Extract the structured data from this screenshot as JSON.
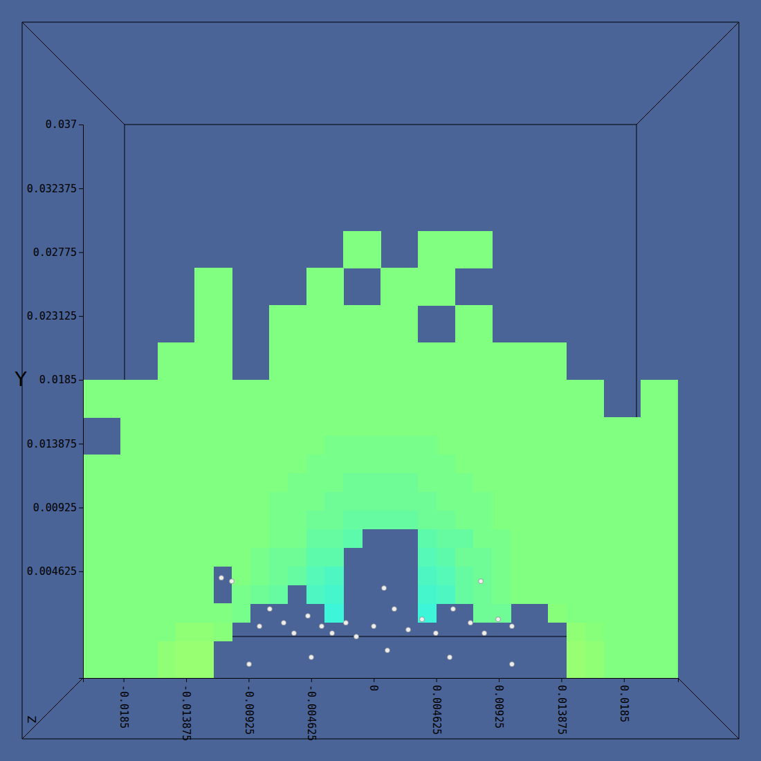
{
  "chart_data": {
    "type": "heatmap",
    "ylabel": "Y",
    "zlabel": "Z",
    "xlim": [
      -0.0215,
      0.0225
    ],
    "ylim": [
      -0.0031,
      0.037
    ],
    "xticks": [
      -0.0185,
      -0.013875,
      -0.00925,
      -0.004625,
      0,
      0.004625,
      0.00925,
      0.013875,
      0.0185
    ],
    "yticks": [
      0.004625,
      0.00925,
      0.013875,
      0.0185,
      0.023125,
      0.02775,
      0.032375,
      0.037
    ],
    "zlim": [
      0,
      1
    ],
    "grid": false,
    "x_edges": [
      -0.0215,
      -0.020125,
      -0.01875,
      -0.017375,
      -0.016,
      -0.014625,
      -0.01325,
      -0.011875,
      -0.0105,
      -0.009125,
      -0.00775,
      -0.006375,
      -0.005,
      -0.003625,
      -0.00225,
      -0.000875,
      0.0005,
      0.001875,
      0.00325,
      0.004625,
      0.006,
      0.007375,
      0.00875,
      0.010125,
      0.0115,
      0.012875,
      0.01425,
      0.015625,
      0.017,
      0.018375,
      0.01975,
      0.021125,
      0.0225
    ],
    "y_edges": [
      -0.0031,
      -0.00175,
      -0.0004,
      0.00095,
      0.0023,
      0.00365,
      0.005,
      0.00635,
      0.0077,
      0.00905,
      0.0104,
      0.01175,
      0.0131,
      0.01445,
      0.0158,
      0.01715,
      0.0185,
      0.01985,
      0.0212,
      0.02255,
      0.0239,
      0.02525,
      0.0266,
      0.02795,
      0.0293
    ],
    "cells": [
      [
        0.5,
        0.5,
        0.5,
        0.5,
        0.6,
        0.65,
        0.65,
        null,
        null,
        null,
        null,
        null,
        null,
        null,
        null,
        null,
        null,
        null,
        null,
        null,
        null,
        null,
        null,
        null,
        null,
        null,
        0.65,
        0.6,
        0.5,
        0.5,
        0.5,
        0.5
      ],
      [
        0.5,
        0.5,
        0.5,
        0.5,
        0.6,
        0.65,
        0.65,
        null,
        null,
        null,
        null,
        null,
        null,
        null,
        null,
        null,
        null,
        null,
        null,
        null,
        null,
        null,
        null,
        null,
        null,
        null,
        0.65,
        0.6,
        0.5,
        0.5,
        0.5,
        0.5
      ],
      [
        0.5,
        0.5,
        0.5,
        0.5,
        0.5,
        0.6,
        0.6,
        0.55,
        null,
        null,
        null,
        null,
        null,
        null,
        null,
        null,
        null,
        null,
        null,
        null,
        null,
        null,
        null,
        null,
        null,
        null,
        0.6,
        0.55,
        0.5,
        0.5,
        0.5,
        0.5
      ],
      [
        0.5,
        0.5,
        0.5,
        0.5,
        0.5,
        0.5,
        0.5,
        0.5,
        0.45,
        null,
        null,
        null,
        null,
        0.1,
        null,
        null,
        null,
        null,
        0.1,
        null,
        null,
        0.4,
        0.4,
        null,
        null,
        0.55,
        0.5,
        0.5,
        0.5,
        0.5,
        0.5,
        0.5
      ],
      [
        0.5,
        0.5,
        0.5,
        0.5,
        0.5,
        0.5,
        0.5,
        null,
        0.45,
        0.4,
        0.35,
        null,
        0.2,
        0.15,
        null,
        null,
        null,
        null,
        0.15,
        0.2,
        0.35,
        0.4,
        0.45,
        0.5,
        0.5,
        0.5,
        0.5,
        0.5,
        0.5,
        0.5,
        0.5,
        0.5
      ],
      [
        0.5,
        0.5,
        0.5,
        0.5,
        0.5,
        0.5,
        0.5,
        null,
        0.5,
        0.45,
        0.4,
        0.35,
        0.25,
        0.2,
        null,
        null,
        null,
        null,
        0.2,
        0.25,
        0.35,
        0.4,
        0.45,
        0.5,
        0.5,
        0.5,
        0.5,
        0.5,
        0.5,
        0.5,
        0.5,
        0.5
      ],
      [
        0.5,
        0.5,
        0.5,
        0.5,
        0.5,
        0.5,
        0.5,
        0.5,
        0.5,
        0.45,
        0.4,
        0.4,
        0.3,
        0.3,
        null,
        null,
        null,
        null,
        0.25,
        0.3,
        0.4,
        0.4,
        0.45,
        0.5,
        0.5,
        0.5,
        0.5,
        0.5,
        0.5,
        0.5,
        0.5,
        0.5
      ],
      [
        0.5,
        0.5,
        0.5,
        0.5,
        0.5,
        0.5,
        0.5,
        0.5,
        0.5,
        0.5,
        0.45,
        0.45,
        0.35,
        0.35,
        0.3,
        null,
        null,
        null,
        0.3,
        0.35,
        0.35,
        0.45,
        0.45,
        0.5,
        0.5,
        0.5,
        0.5,
        0.5,
        0.5,
        0.5,
        0.5,
        0.5
      ],
      [
        0.5,
        0.5,
        0.5,
        0.5,
        0.5,
        0.5,
        0.5,
        0.5,
        0.5,
        0.5,
        0.45,
        0.45,
        0.4,
        0.4,
        0.35,
        0.35,
        0.35,
        0.35,
        0.4,
        0.4,
        0.45,
        0.45,
        0.5,
        0.5,
        0.5,
        0.5,
        0.5,
        0.5,
        0.5,
        0.5,
        0.5,
        0.5
      ],
      [
        0.5,
        0.5,
        0.5,
        0.5,
        0.5,
        0.5,
        0.5,
        0.5,
        0.5,
        0.5,
        0.45,
        0.45,
        0.45,
        0.4,
        0.4,
        0.4,
        0.4,
        0.4,
        0.4,
        0.45,
        0.45,
        0.45,
        0.5,
        0.5,
        0.5,
        0.5,
        0.5,
        0.5,
        0.5,
        0.5,
        0.5,
        0.5
      ],
      [
        0.5,
        0.5,
        0.5,
        0.5,
        0.5,
        0.5,
        0.5,
        0.5,
        0.5,
        0.5,
        0.5,
        0.45,
        0.45,
        0.45,
        0.4,
        0.4,
        0.4,
        0.4,
        0.45,
        0.45,
        0.45,
        0.5,
        0.5,
        0.5,
        0.5,
        0.5,
        0.5,
        0.5,
        0.5,
        0.5,
        0.5,
        0.5
      ],
      [
        0.5,
        0.5,
        0.5,
        0.5,
        0.5,
        0.5,
        0.5,
        0.5,
        0.5,
        0.5,
        0.5,
        0.5,
        0.45,
        0.45,
        0.45,
        0.45,
        0.45,
        0.45,
        0.45,
        0.45,
        0.5,
        0.5,
        0.5,
        0.5,
        0.5,
        0.5,
        0.5,
        0.5,
        0.5,
        0.5,
        0.5,
        0.5
      ],
      [
        null,
        null,
        0.5,
        0.5,
        0.5,
        0.5,
        0.5,
        0.5,
        0.5,
        0.5,
        0.5,
        0.5,
        0.5,
        0.45,
        0.45,
        0.45,
        0.45,
        0.45,
        0.45,
        0.5,
        0.5,
        0.5,
        0.5,
        0.5,
        0.5,
        0.5,
        0.5,
        0.5,
        0.5,
        0.5,
        0.5,
        0.5
      ],
      [
        null,
        null,
        0.5,
        0.5,
        0.5,
        0.5,
        0.5,
        0.5,
        0.5,
        0.5,
        0.5,
        0.5,
        0.5,
        0.5,
        0.5,
        0.5,
        0.5,
        0.5,
        0.5,
        0.5,
        0.5,
        0.5,
        0.5,
        0.5,
        0.5,
        0.5,
        0.5,
        0.5,
        0.5,
        0.5,
        0.5,
        0.5
      ],
      [
        0.5,
        0.5,
        0.5,
        0.5,
        0.5,
        0.5,
        0.5,
        0.5,
        0.5,
        0.5,
        0.5,
        0.5,
        0.5,
        0.5,
        0.5,
        0.5,
        0.5,
        0.5,
        0.5,
        0.5,
        0.5,
        0.5,
        0.5,
        0.5,
        0.5,
        0.5,
        0.5,
        0.5,
        null,
        null,
        0.5,
        0.5
      ],
      [
        0.5,
        0.5,
        0.5,
        0.5,
        0.5,
        0.5,
        0.5,
        0.5,
        0.5,
        0.5,
        0.5,
        0.5,
        0.5,
        0.5,
        0.5,
        0.5,
        0.5,
        0.5,
        0.5,
        0.5,
        0.5,
        0.5,
        0.5,
        0.5,
        0.5,
        0.5,
        0.5,
        0.5,
        null,
        null,
        0.5,
        0.5
      ],
      [
        null,
        null,
        null,
        null,
        0.5,
        0.5,
        0.5,
        0.5,
        null,
        null,
        0.5,
        0.5,
        0.5,
        0.5,
        0.5,
        0.5,
        0.5,
        0.5,
        0.5,
        0.5,
        0.5,
        0.5,
        0.5,
        0.5,
        0.5,
        0.5,
        null,
        null,
        null,
        null,
        null,
        null
      ],
      [
        null,
        null,
        null,
        null,
        0.5,
        0.5,
        0.5,
        0.5,
        null,
        null,
        0.5,
        0.5,
        0.5,
        0.5,
        0.5,
        0.5,
        0.5,
        0.5,
        0.5,
        0.5,
        0.5,
        0.5,
        0.5,
        0.5,
        0.5,
        0.5,
        null,
        null,
        null,
        null,
        null,
        null
      ],
      [
        null,
        null,
        null,
        null,
        null,
        null,
        0.5,
        0.5,
        null,
        null,
        0.5,
        0.5,
        0.5,
        0.5,
        0.5,
        0.5,
        0.5,
        0.5,
        null,
        null,
        0.5,
        0.5,
        null,
        null,
        null,
        null,
        null,
        null,
        null,
        null,
        null,
        null
      ],
      [
        null,
        null,
        null,
        null,
        null,
        null,
        0.5,
        0.5,
        null,
        null,
        0.5,
        0.5,
        0.5,
        0.5,
        0.5,
        0.5,
        0.5,
        0.5,
        null,
        null,
        0.5,
        0.5,
        null,
        null,
        null,
        null,
        null,
        null,
        null,
        null,
        null,
        null
      ],
      [
        null,
        null,
        null,
        null,
        null,
        null,
        0.5,
        0.5,
        null,
        null,
        null,
        null,
        0.5,
        0.5,
        null,
        null,
        0.5,
        0.5,
        0.5,
        0.5,
        null,
        null,
        null,
        null,
        null,
        null,
        null,
        null,
        null,
        null,
        null,
        null
      ],
      [
        null,
        null,
        null,
        null,
        null,
        null,
        0.5,
        0.5,
        null,
        null,
        null,
        null,
        0.5,
        0.5,
        null,
        null,
        0.5,
        0.5,
        0.5,
        0.5,
        null,
        null,
        null,
        null,
        null,
        null,
        null,
        null,
        null,
        null,
        null,
        null
      ],
      [
        null,
        null,
        null,
        null,
        null,
        null,
        null,
        null,
        null,
        null,
        null,
        null,
        null,
        null,
        0.5,
        0.5,
        null,
        null,
        0.5,
        0.5,
        0.5,
        0.5,
        null,
        null,
        null,
        null,
        null,
        null,
        null,
        null,
        null,
        null
      ],
      [
        null,
        null,
        null,
        null,
        null,
        null,
        null,
        null,
        null,
        null,
        null,
        null,
        null,
        null,
        0.5,
        0.5,
        null,
        null,
        0.5,
        0.5,
        0.5,
        0.5,
        null,
        null,
        null,
        null,
        null,
        null,
        null,
        null,
        null,
        null
      ]
    ],
    "series": [
      {
        "type": "scatter",
        "color": "#eeeeee",
        "marker": "circle",
        "x": [
          -0.01127,
          -0.0105,
          -0.00845,
          -0.00769,
          -0.00666,
          -0.0059,
          -0.00487,
          -0.00385,
          -0.00308,
          -0.00206,
          -0.00129,
          0.0,
          0.00076,
          0.00152,
          0.00255,
          0.00357,
          0.00459,
          0.00587,
          0.00715,
          0.00818,
          0.0092,
          0.01022,
          0.00792,
          0.00101,
          -0.00462,
          0.00562,
          0.01022,
          -0.00922
        ],
        "values": [
          0.00416,
          0.00391,
          0.00065,
          0.0019,
          0.0009,
          0.00015,
          0.0014,
          0.00065,
          0.00015,
          0.0009,
          -0.0001,
          0.00065,
          0.00341,
          0.0019,
          0.0004,
          0.00115,
          0.00015,
          0.0019,
          0.0009,
          0.00015,
          0.00115,
          0.00065,
          0.00391,
          -0.0011,
          -0.0016,
          -0.0016,
          -0.0021,
          -0.0021
        ]
      }
    ]
  }
}
